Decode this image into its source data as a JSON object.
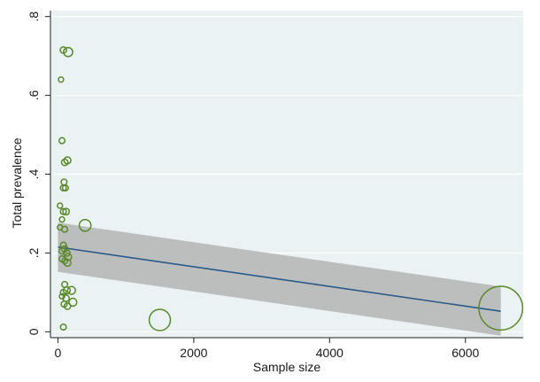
{
  "chart_data": {
    "type": "scatter",
    "title": "",
    "xlabel": "Sample size",
    "ylabel": "Total prevalence",
    "xlim": [
      -110,
      6850
    ],
    "ylim": [
      -0.015,
      0.815
    ],
    "xticks": [
      0,
      2000,
      4000,
      6000
    ],
    "xtick_labels": [
      "0",
      "2000",
      "4000",
      "6000"
    ],
    "yticks": [
      0,
      0.2,
      0.4,
      0.6,
      0.8
    ],
    "ytick_labels": [
      "0",
      ".2",
      ".4",
      ".6",
      ".8"
    ],
    "grid": true,
    "legend": "none",
    "colors": {
      "plot_background": "#eaf2f3",
      "frame_background": "#ffffff",
      "gridline": "#ffffff",
      "marker": "#5a8a2a",
      "fit_line": "#2b5a88",
      "confidence_band": "#b9b9b9",
      "axis": "#222222"
    },
    "points": [
      {
        "x": 80,
        "y": 0.715,
        "size": 30
      },
      {
        "x": 150,
        "y": 0.71,
        "size": 60
      },
      {
        "x": 45,
        "y": 0.64,
        "size": 20
      },
      {
        "x": 60,
        "y": 0.485,
        "size": 25
      },
      {
        "x": 100,
        "y": 0.43,
        "size": 30
      },
      {
        "x": 140,
        "y": 0.435,
        "size": 35
      },
      {
        "x": 90,
        "y": 0.38,
        "size": 25
      },
      {
        "x": 80,
        "y": 0.365,
        "size": 25
      },
      {
        "x": 110,
        "y": 0.365,
        "size": 25
      },
      {
        "x": 30,
        "y": 0.32,
        "size": 20
      },
      {
        "x": 80,
        "y": 0.305,
        "size": 25
      },
      {
        "x": 120,
        "y": 0.305,
        "size": 30
      },
      {
        "x": 60,
        "y": 0.285,
        "size": 20
      },
      {
        "x": 30,
        "y": 0.265,
        "size": 20
      },
      {
        "x": 100,
        "y": 0.26,
        "size": 25
      },
      {
        "x": 400,
        "y": 0.27,
        "size": 100
      },
      {
        "x": 80,
        "y": 0.22,
        "size": 25
      },
      {
        "x": 60,
        "y": 0.205,
        "size": 25
      },
      {
        "x": 100,
        "y": 0.21,
        "size": 30
      },
      {
        "x": 130,
        "y": 0.2,
        "size": 30
      },
      {
        "x": 150,
        "y": 0.19,
        "size": 35
      },
      {
        "x": 60,
        "y": 0.185,
        "size": 25
      },
      {
        "x": 100,
        "y": 0.18,
        "size": 25
      },
      {
        "x": 140,
        "y": 0.175,
        "size": 35
      },
      {
        "x": 100,
        "y": 0.12,
        "size": 25
      },
      {
        "x": 130,
        "y": 0.105,
        "size": 35
      },
      {
        "x": 200,
        "y": 0.105,
        "size": 45
      },
      {
        "x": 80,
        "y": 0.1,
        "size": 25
      },
      {
        "x": 60,
        "y": 0.09,
        "size": 20
      },
      {
        "x": 120,
        "y": 0.085,
        "size": 30
      },
      {
        "x": 220,
        "y": 0.075,
        "size": 45
      },
      {
        "x": 90,
        "y": 0.07,
        "size": 25
      },
      {
        "x": 140,
        "y": 0.065,
        "size": 30
      },
      {
        "x": 80,
        "y": 0.012,
        "size": 25
      },
      {
        "x": 1500,
        "y": 0.03,
        "size": 330
      },
      {
        "x": 6520,
        "y": 0.06,
        "size": 1400
      }
    ],
    "fit_line": {
      "x": [
        0,
        6520
      ],
      "y": [
        0.215,
        0.052
      ]
    },
    "confidence_band": {
      "x": [
        0,
        6520
      ],
      "upper": [
        0.277,
        0.115
      ],
      "lower": [
        0.152,
        -0.01
      ]
    }
  }
}
